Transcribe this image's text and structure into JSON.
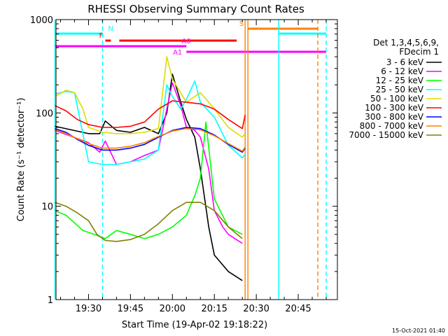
{
  "chart_data": {
    "type": "line",
    "title": "RHESSI Observing Summary Count Rates",
    "xlabel": "Start Time (19-Apr-02 19:18:22)",
    "ylabel": "Count Rate (s⁻¹ detector⁻¹)",
    "xlim": [
      "19:18:22",
      "20:59:00"
    ],
    "ylim": [
      1,
      1000
    ],
    "yscale": "log",
    "x_ticks": [
      "19:30",
      "19:45",
      "20:00",
      "20:15",
      "20:30",
      "20:45"
    ],
    "y_ticks": [
      "1",
      "10",
      "100",
      "1000"
    ],
    "timestamp": "15-Oct-2021 01:40",
    "legend_position": "right",
    "legend_header": [
      "Det 1,3,4,5,6,9,",
      "FDecim 1"
    ],
    "series": [
      {
        "name": "3 - 6 keV",
        "color": "#000000",
        "x": [
          "19:18",
          "19:30",
          "19:34",
          "19:36",
          "19:40",
          "19:45",
          "19:50",
          "19:55",
          "19:58",
          "20:00",
          "20:03",
          "20:05",
          "20:08",
          "20:10",
          "20:13",
          "20:15",
          "20:20",
          "20:25"
        ],
        "values": [
          72,
          60,
          60,
          82,
          65,
          62,
          70,
          60,
          100,
          260,
          130,
          85,
          55,
          25,
          6,
          3,
          2,
          1.6
        ]
      },
      {
        "name": "6 - 12 keV",
        "color": "#ff00ff",
        "x": [
          "19:18",
          "19:30",
          "19:34",
          "19:36",
          "19:40",
          "19:45",
          "19:50",
          "19:55",
          "19:58",
          "20:00",
          "20:03",
          "20:05",
          "20:08",
          "20:10",
          "20:13",
          "20:15",
          "20:18",
          "20:20",
          "20:25"
        ],
        "values": [
          65,
          48,
          38,
          50,
          28,
          30,
          35,
          40,
          110,
          210,
          120,
          70,
          65,
          55,
          25,
          9,
          6,
          5,
          4
        ]
      },
      {
        "name": "12 - 25 keV",
        "color": "#00ff00",
        "x": [
          "19:18",
          "19:22",
          "19:28",
          "19:32",
          "19:36",
          "19:40",
          "19:45",
          "19:50",
          "19:55",
          "20:00",
          "20:05",
          "20:08",
          "20:10",
          "20:12",
          "20:15",
          "20:20",
          "20:25"
        ],
        "values": [
          9,
          8,
          5.5,
          5,
          4.5,
          5.5,
          5,
          4.5,
          5,
          6,
          8,
          13,
          20,
          80,
          12,
          6,
          5
        ]
      },
      {
        "name": "25 - 50 keV",
        "color": "#00ffff",
        "x": [
          "19:18",
          "19:22",
          "19:25",
          "19:30",
          "19:35",
          "19:40",
          "19:45",
          "19:50",
          "19:55",
          "19:58",
          "20:00",
          "20:03",
          "20:05",
          "20:08",
          "20:10",
          "20:15",
          "20:20",
          "20:25",
          "20:26"
        ],
        "values": [
          160,
          170,
          165,
          30,
          28,
          28,
          30,
          32,
          40,
          200,
          150,
          110,
          140,
          220,
          130,
          90,
          45,
          33,
          36
        ]
      },
      {
        "name": "50 - 100 keV",
        "color": "#dddd00",
        "x": [
          "19:18",
          "19:22",
          "19:25",
          "19:28",
          "19:30",
          "19:35",
          "19:40",
          "19:45",
          "19:50",
          "19:55",
          "19:58",
          "20:00",
          "20:05",
          "20:10",
          "20:15",
          "20:20",
          "20:25",
          "20:26"
        ],
        "values": [
          150,
          175,
          165,
          110,
          70,
          62,
          60,
          60,
          62,
          68,
          400,
          230,
          130,
          165,
          110,
          70,
          55,
          60
        ]
      },
      {
        "name": "100 - 300 keV",
        "color": "#ff0000",
        "x": [
          "19:18",
          "19:22",
          "19:26",
          "19:30",
          "19:35",
          "19:40",
          "19:45",
          "19:50",
          "19:55",
          "20:00",
          "20:05",
          "20:10",
          "20:15",
          "20:20",
          "20:25",
          "20:26"
        ],
        "values": [
          120,
          105,
          85,
          75,
          70,
          70,
          72,
          80,
          110,
          135,
          130,
          125,
          110,
          85,
          68,
          95
        ]
      },
      {
        "name": "300 - 800 keV",
        "color": "#0000ff",
        "x": [
          "19:18",
          "19:22",
          "19:26",
          "19:30",
          "19:35",
          "19:40",
          "19:45",
          "19:50",
          "19:55",
          "20:00",
          "20:05",
          "20:10",
          "20:15",
          "20:20",
          "20:25",
          "20:26"
        ],
        "values": [
          68,
          62,
          52,
          45,
          40,
          40,
          42,
          46,
          55,
          65,
          70,
          68,
          58,
          46,
          38,
          42
        ]
      },
      {
        "name": "800 - 7000 keV",
        "color": "#ff8000",
        "x": [
          "19:18",
          "19:22",
          "19:26",
          "19:30",
          "19:35",
          "19:40",
          "19:45",
          "19:50",
          "19:55",
          "20:00",
          "20:05",
          "20:10",
          "20:15",
          "20:20",
          "20:25",
          "20:26"
        ],
        "values": [
          66,
          60,
          53,
          47,
          42,
          42,
          44,
          48,
          56,
          64,
          68,
          66,
          57,
          47,
          39,
          43
        ]
      },
      {
        "name": "7000 - 15000 keV",
        "color": "#808000",
        "x": [
          "19:18",
          "19:22",
          "19:26",
          "19:30",
          "19:33",
          "19:36",
          "19:40",
          "19:45",
          "19:50",
          "19:55",
          "20:00",
          "20:05",
          "20:10",
          "20:15",
          "20:20",
          "20:25"
        ],
        "values": [
          11,
          10,
          8.5,
          7,
          5,
          4.3,
          4.2,
          4.4,
          5,
          6.5,
          9,
          11,
          11,
          9,
          6,
          4.5
        ]
      }
    ],
    "annotations": [
      {
        "label": "N",
        "color": "#00ffff",
        "segments": [
          [
            "19:18",
            "19:35"
          ]
        ]
      },
      {
        "label": "",
        "color": "#00ffff",
        "segments": [
          [
            "20:38",
            "20:55"
          ]
        ]
      },
      {
        "label": "F",
        "color": "#ff0000",
        "segments": [
          [
            "19:36",
            "19:38"
          ],
          [
            "19:41",
            "20:23"
          ]
        ]
      },
      {
        "label": "A0",
        "color": "#ff00ff",
        "segments": [
          [
            "19:18",
            "20:05"
          ]
        ]
      },
      {
        "label": "A1",
        "color": "#ff00ff",
        "segments": [
          [
            "20:05",
            "20:55"
          ]
        ]
      },
      {
        "label": "S",
        "color": "#ff8000",
        "segments": [
          [
            "20:27",
            "20:52"
          ]
        ]
      }
    ],
    "vlines": [
      {
        "time": "19:18",
        "color": "#00ffff",
        "style": "solid"
      },
      {
        "time": "19:35",
        "color": "#00ffff",
        "style": "dashed"
      },
      {
        "time": "20:26",
        "color": "#ff8000",
        "style": "solid"
      },
      {
        "time": "20:27",
        "color": "#ff8000",
        "style": "solid"
      },
      {
        "time": "20:38",
        "color": "#00ffff",
        "style": "solid"
      },
      {
        "time": "20:52",
        "color": "#ff8000",
        "style": "dashed"
      },
      {
        "time": "20:55",
        "color": "#00ffff",
        "style": "dashed"
      }
    ]
  }
}
